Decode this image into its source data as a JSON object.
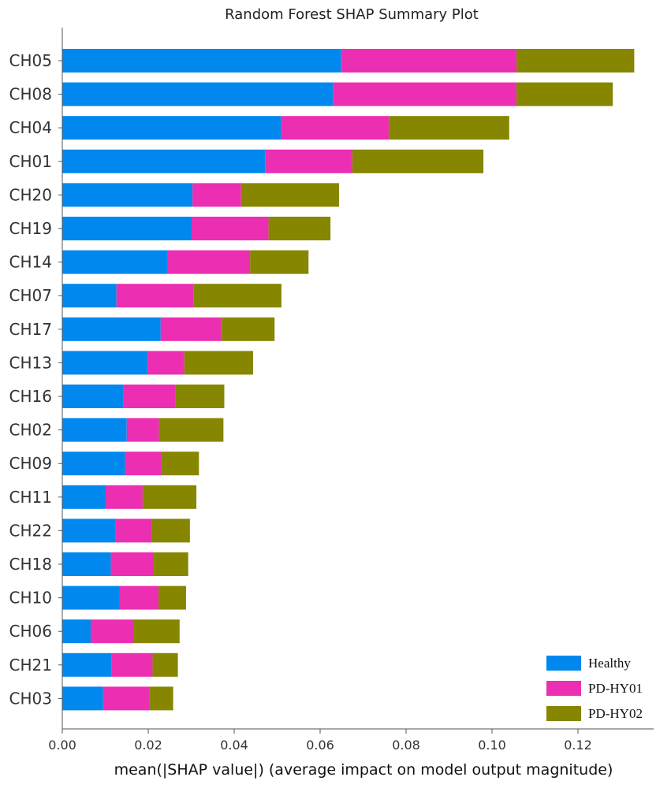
{
  "chart_data": {
    "type": "bar",
    "orientation": "horizontal",
    "stacked": true,
    "title": "Random Forest SHAP Summary Plot",
    "xlabel": "mean(|SHAP value|) (average impact on model output magnitude)",
    "ylabel": "",
    "xlim": [
      0,
      0.1335
    ],
    "x_ticks": [
      "0.00",
      "0.02",
      "0.04",
      "0.06",
      "0.08",
      "0.10",
      "0.12"
    ],
    "x_tick_values": [
      0,
      0.02,
      0.04,
      0.06,
      0.08,
      0.1,
      0.12
    ],
    "grid": false,
    "legend_position": "bottom-right",
    "categories": [
      "CH05",
      "CH08",
      "CH04",
      "CH01",
      "CH20",
      "CH19",
      "CH14",
      "CH07",
      "CH17",
      "CH13",
      "CH16",
      "CH02",
      "CH09",
      "CH11",
      "CH22",
      "CH18",
      "CH10",
      "CH06",
      "CH21",
      "CH03"
    ],
    "series": [
      {
        "name": "Healthy",
        "color": "#0088ee",
        "values": [
          0.0649,
          0.063,
          0.0509,
          0.0472,
          0.0303,
          0.0301,
          0.0244,
          0.0126,
          0.0229,
          0.0198,
          0.0142,
          0.015,
          0.0146,
          0.01,
          0.0124,
          0.0113,
          0.0133,
          0.0066,
          0.0115,
          0.0095
        ]
      },
      {
        "name": "PD-HY01",
        "color": "#ec2eb2",
        "values": [
          0.0408,
          0.0427,
          0.0251,
          0.0203,
          0.0113,
          0.0179,
          0.0193,
          0.018,
          0.0141,
          0.0086,
          0.0122,
          0.0075,
          0.0085,
          0.0087,
          0.0085,
          0.01,
          0.0091,
          0.0101,
          0.0095,
          0.0108
        ]
      },
      {
        "name": "PD-HY02",
        "color": "#868600",
        "values": [
          0.0274,
          0.0224,
          0.028,
          0.0305,
          0.0228,
          0.0144,
          0.0136,
          0.0204,
          0.0124,
          0.016,
          0.0113,
          0.015,
          0.0087,
          0.0125,
          0.0088,
          0.008,
          0.0064,
          0.0106,
          0.0059,
          0.0055
        ]
      }
    ]
  }
}
